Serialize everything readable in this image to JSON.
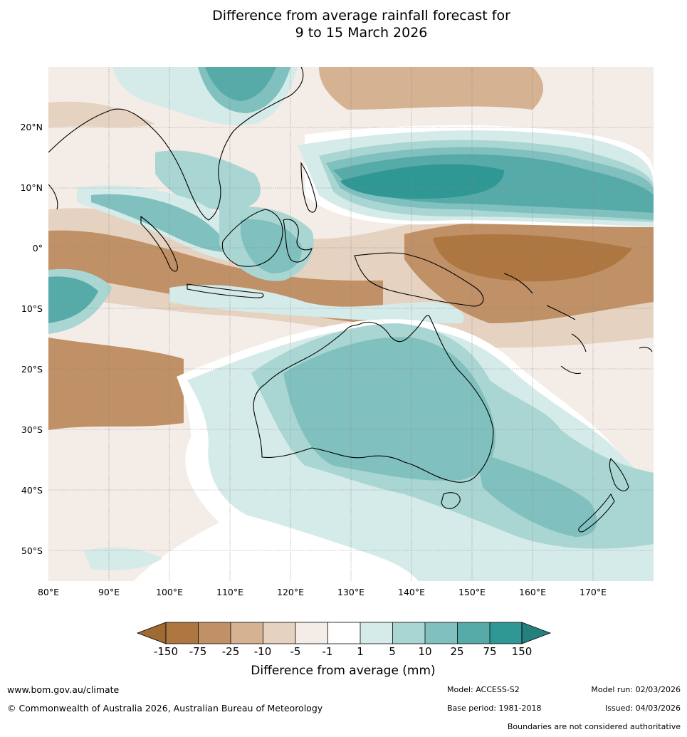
{
  "title": {
    "line1": "Difference from average rainfall forecast for",
    "line2": "9 to 15 March 2026"
  },
  "map": {
    "latitude_labels": [
      "20°N",
      "10°N",
      "0°",
      "10°S",
      "20°S",
      "30°S",
      "40°S",
      "50°S"
    ],
    "longitude_labels": [
      "80°E",
      "90°E",
      "100°E",
      "110°E",
      "120°E",
      "130°E",
      "140°E",
      "150°E",
      "160°E",
      "170°E"
    ]
  },
  "colorbar": {
    "ticks": [
      "-150",
      "-75",
      "-25",
      "-10",
      "-5",
      "-1",
      "1",
      "5",
      "10",
      "25",
      "75",
      "150"
    ],
    "colors": [
      "#a06a32",
      "#ae7640",
      "#c09066",
      "#d4b292",
      "#e6d2c0",
      "#f4ece6",
      "#ffffff",
      "#d5ebe9",
      "#a9d6d3",
      "#80c0be",
      "#56aaa8",
      "#2f9794",
      "#257f7d"
    ],
    "label": "Difference from average (mm)"
  },
  "footer": {
    "website": "www.bom.gov.au/climate",
    "copyright": "© Commonwealth of Australia 2026, Australian Bureau of Meteorology",
    "model": "Model: ACCESS-S2",
    "base_period": "Base period: 1981-2018",
    "model_run": "Model run: 02/03/2026",
    "issued": "Issued: 04/03/2026",
    "boundaries_note": "Boundaries are not considered authoritative"
  }
}
